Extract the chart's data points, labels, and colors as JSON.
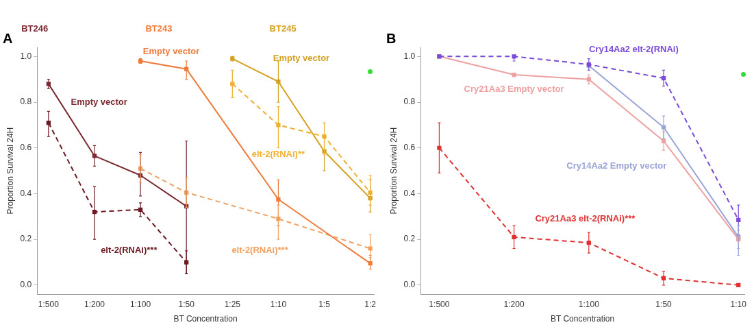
{
  "chart_data": [
    {
      "type": "line",
      "title": "A",
      "xlabel": "BT Concentration",
      "ylabel": "Proportion Survival 24H",
      "categories": [
        "1:500",
        "1:200",
        "1:100",
        "1:50",
        "1:25",
        "1:10",
        "1:5",
        "1:2"
      ],
      "annotations": [
        "BT246",
        "BT243",
        "BT245"
      ],
      "ylim": [
        -0.04,
        1.04
      ],
      "yticks": [
        {
          "value": 0,
          "label": "0.0"
        },
        {
          "value": 0.2,
          "label": "0.2"
        },
        {
          "value": 0.4,
          "label": "0.4"
        },
        {
          "value": 0.6,
          "label": "0.6"
        },
        {
          "value": 0.8,
          "label": "0.8"
        },
        {
          "value": 1,
          "label": "1.0"
        }
      ],
      "marker": "square",
      "grid": false,
      "legend": false,
      "series": [
        {
          "name": "Empty vector",
          "color": "#7a2a30",
          "line_style": "solid",
          "values": [
            0.88,
            0.565,
            0.48,
            0.345,
            null,
            null,
            null,
            null
          ],
          "errors": [
            [
              0.86,
              0.9
            ],
            [
              0.52,
              0.61
            ],
            [
              0.39,
              0.58
            ],
            [
              0.05,
              0.63
            ],
            null,
            null,
            null,
            null
          ]
        },
        {
          "name": "elt-2(RNAi)***",
          "color": "#6b1a22",
          "line_style": "dashed",
          "values": [
            0.71,
            0.32,
            0.33,
            0.1,
            null,
            null,
            null,
            null
          ],
          "errors": [
            [
              0.65,
              0.76
            ],
            [
              0.2,
              0.43
            ],
            [
              0.3,
              0.36
            ],
            [
              0.05,
              0.15
            ],
            null,
            null,
            null,
            null
          ]
        },
        {
          "name": "Empty vector",
          "color": "#f07a3a",
          "line_style": "solid",
          "values": [
            null,
            null,
            0.98,
            0.945,
            null,
            0.375,
            null,
            0.095
          ],
          "errors": [
            null,
            null,
            [
              0.97,
              0.99
            ],
            [
              0.9,
              0.98
            ],
            null,
            [
              0.26,
              0.46
            ],
            null,
            [
              0.07,
              0.13
            ]
          ]
        },
        {
          "name": "elt-2(RNAi)***",
          "color": "#f2a060",
          "line_style": "dashed",
          "values": [
            null,
            null,
            0.51,
            0.405,
            null,
            0.29,
            null,
            0.16
          ],
          "errors": [
            null,
            null,
            [
              0.45,
              0.57
            ],
            [
              0.34,
              0.47
            ],
            null,
            [
              0.2,
              0.35
            ],
            null,
            [
              0.12,
              0.22
            ]
          ]
        },
        {
          "name": "Empty vector",
          "color": "#d4a020",
          "line_style": "solid",
          "values": [
            null,
            null,
            null,
            null,
            0.99,
            0.89,
            0.585,
            0.38
          ],
          "errors": [
            null,
            null,
            null,
            null,
            [
              0.98,
              1.0
            ],
            [
              0.8,
              0.98
            ],
            [
              0.5,
              0.65
            ],
            [
              0.32,
              0.46
            ]
          ]
        },
        {
          "name": "elt-2(RNAi)**",
          "color": "#f0b030",
          "line_style": "dashed",
          "values": [
            null,
            null,
            null,
            null,
            0.88,
            0.7,
            0.65,
            0.405
          ],
          "errors": [
            null,
            null,
            null,
            null,
            [
              0.82,
              0.94
            ],
            [
              0.6,
              0.78
            ],
            [
              0.57,
              0.71
            ],
            [
              0.35,
              0.48
            ]
          ]
        }
      ]
    },
    {
      "type": "line",
      "title": "B",
      "xlabel": "BT Concentration",
      "ylabel": "Proportion Survival 24H",
      "categories": [
        "1:500",
        "1:200",
        "1:100",
        "1:50",
        "1:10"
      ],
      "ylim": [
        -0.04,
        1.04
      ],
      "yticks": [
        {
          "value": 0,
          "label": "0.0"
        },
        {
          "value": 0.2,
          "label": "0.2"
        },
        {
          "value": 0.4,
          "label": "0.4"
        },
        {
          "value": 0.6,
          "label": "0.6"
        },
        {
          "value": 0.8,
          "label": "0.8"
        },
        {
          "value": 1,
          "label": "1.0"
        }
      ],
      "marker": "square",
      "grid": false,
      "legend": false,
      "series": [
        {
          "name": "Cry14Aa2 elt-2(RNAi)",
          "color": "#7a4ad8",
          "line_style": "dashed",
          "values": [
            1.0,
            1.0,
            0.965,
            0.905,
            0.285
          ],
          "errors": [
            null,
            [
              0.98,
              1.0
            ],
            [
              0.94,
              0.99
            ],
            [
              0.87,
              0.94
            ],
            [
              0.22,
              0.35
            ]
          ]
        },
        {
          "name": "Cry21Aa3 Empty vector",
          "color": "#eea0a0",
          "line_style": "solid",
          "values": [
            1.0,
            0.92,
            0.9,
            0.63,
            0.2
          ],
          "errors": [
            null,
            null,
            [
              0.88,
              0.92
            ],
            [
              0.59,
              0.67
            ],
            [
              0.16,
              0.24
            ]
          ]
        },
        {
          "name": "Cry14Aa2 Empty vector",
          "color": "#9aa4d8",
          "line_style": "solid",
          "values": [
            null,
            null,
            0.96,
            0.69,
            0.21
          ],
          "errors": [
            null,
            null,
            null,
            [
              0.64,
              0.74
            ],
            [
              0.13,
              0.26
            ]
          ]
        },
        {
          "name": "Cry21Aa3 elt-2(RNAi)***",
          "color": "#e03030",
          "line_style": "dashed",
          "values": [
            0.6,
            0.21,
            0.185,
            0.03,
            0.0
          ],
          "errors": [
            [
              0.49,
              0.71
            ],
            [
              0.16,
              0.26
            ],
            [
              0.14,
              0.23
            ],
            [
              0.0,
              0.06
            ],
            null
          ]
        }
      ]
    }
  ]
}
